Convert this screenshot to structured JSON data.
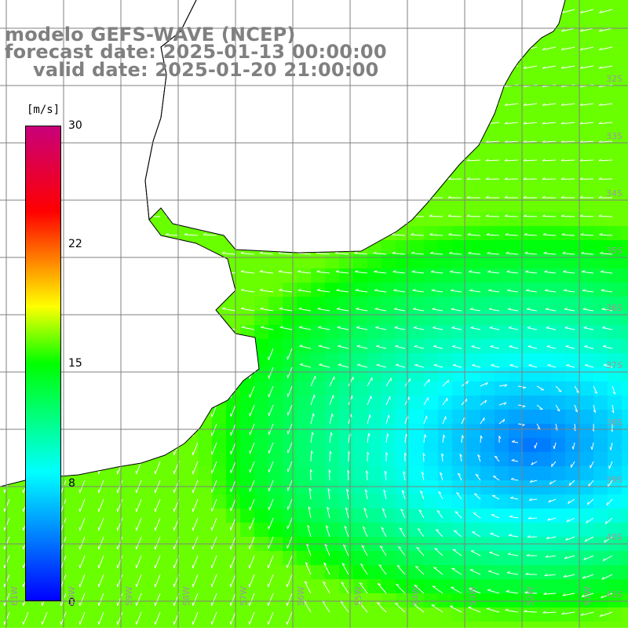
{
  "titles": {
    "line1": "modelo GEFS-WAVE (NCEP)",
    "line2": "forecast date: 2025-01-13 00:00:00",
    "line3": "valid date: 2025-01-20 21:00:00"
  },
  "colorbar": {
    "unit": "[m/s]",
    "ticks": [
      "30",
      "22",
      "15",
      "8",
      "0"
    ],
    "colors": [
      "#0000ff",
      "#00ffff",
      "#00ff00",
      "#ffff00",
      "#ff0000",
      "#c8007a"
    ]
  },
  "lon_labels": [
    "61W",
    "60W",
    "59W",
    "58W",
    "57W",
    "56W",
    "55W",
    "54W",
    "53W",
    "52W",
    "51W"
  ],
  "lat_labels": [
    "32S",
    "33S",
    "34S",
    "35S",
    "36S",
    "37S",
    "38S",
    "39S",
    "40S",
    "41S"
  ],
  "colors": {
    "land": "#ffffff",
    "grid": "#808080",
    "coast": "#000000",
    "arrows": "#ffffff",
    "title": "#808080"
  }
}
